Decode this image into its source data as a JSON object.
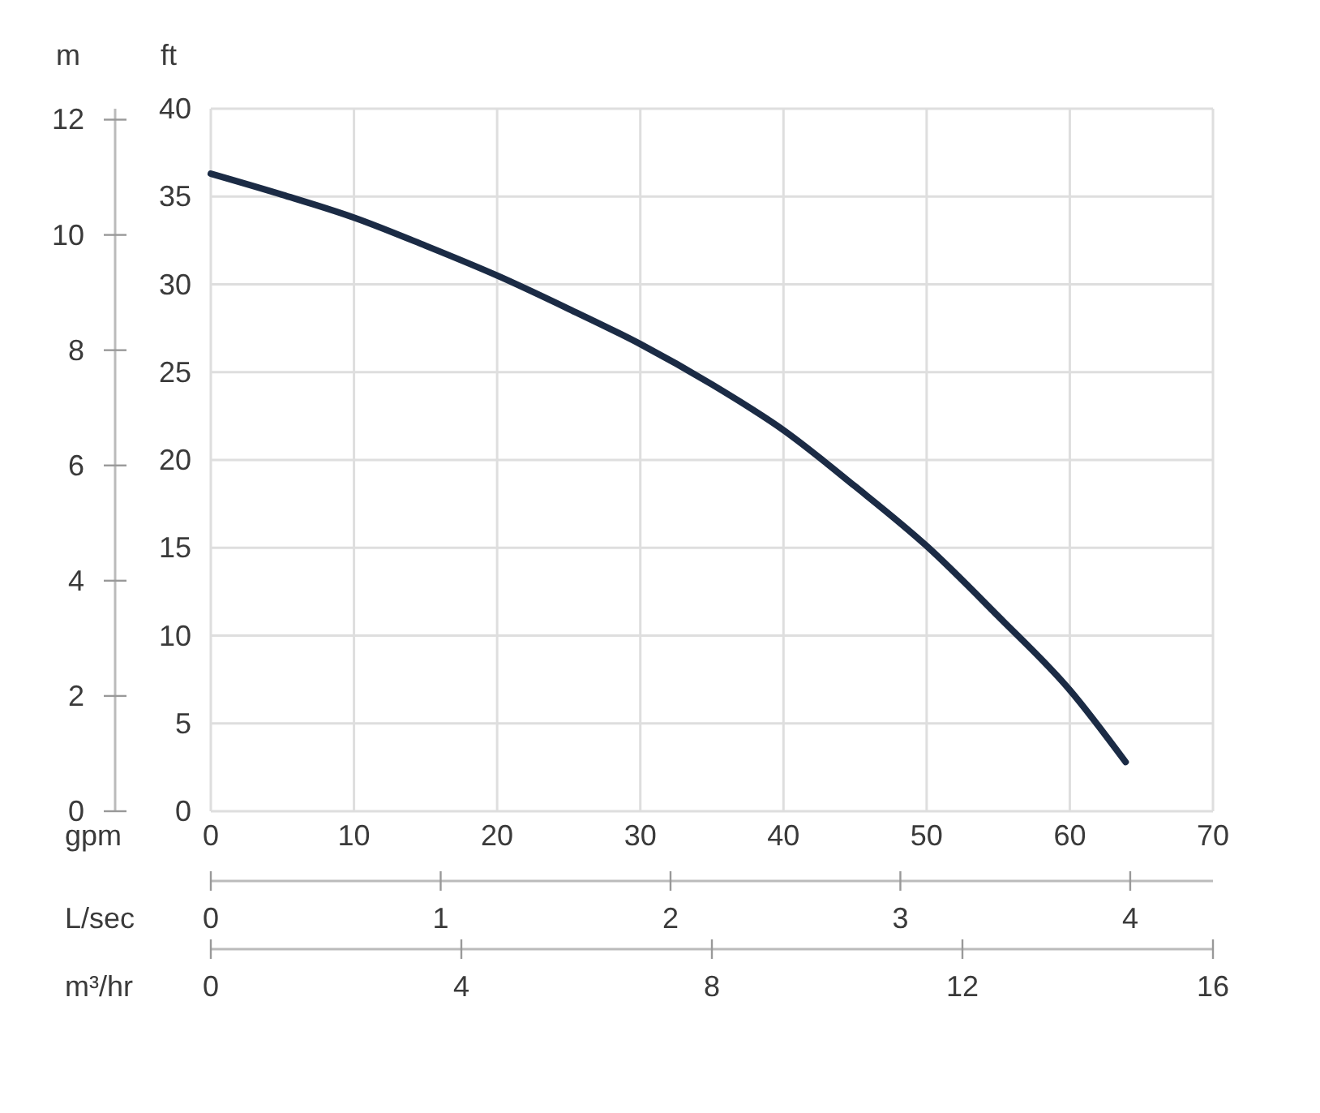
{
  "chart_data": [
    {
      "type": "line",
      "xlabel": "gpm",
      "ylabel": "ft",
      "x2label": "L/sec",
      "x": [
        0,
        5,
        10,
        15,
        20,
        25,
        30,
        35,
        40,
        45,
        50,
        55,
        60,
        63.9
      ],
      "series": [
        {
          "color": "#1b2b45",
          "values": [
            36.3,
            35.1,
            33.8,
            32.2,
            30.5,
            28.6,
            26.6,
            24.3,
            21.7,
            18.5,
            15.1,
            11.1,
            6.9,
            2.8
          ]
        }
      ],
      "xlim": [
        0,
        70
      ],
      "xticks": [
        0,
        10,
        20,
        30,
        40,
        50,
        60,
        70
      ],
      "ylim": [
        0,
        40
      ],
      "yticks": [
        0,
        5,
        10,
        15,
        20,
        25,
        30,
        35,
        40
      ],
      "x2lim": [
        0,
        4.36
      ],
      "x2ticks": [
        0,
        1,
        2,
        3,
        4
      ],
      "grid": true,
      "line_style": "solid"
    },
    {
      "type": "line",
      "xlabel": "m³/hr",
      "ylabel": "m",
      "xlim": [
        0,
        16
      ],
      "xticks": [
        0,
        4,
        8,
        12,
        16
      ],
      "ylim": [
        0,
        12.19
      ],
      "yticks": [
        0,
        2,
        4,
        6,
        8,
        10,
        12
      ]
    }
  ]
}
